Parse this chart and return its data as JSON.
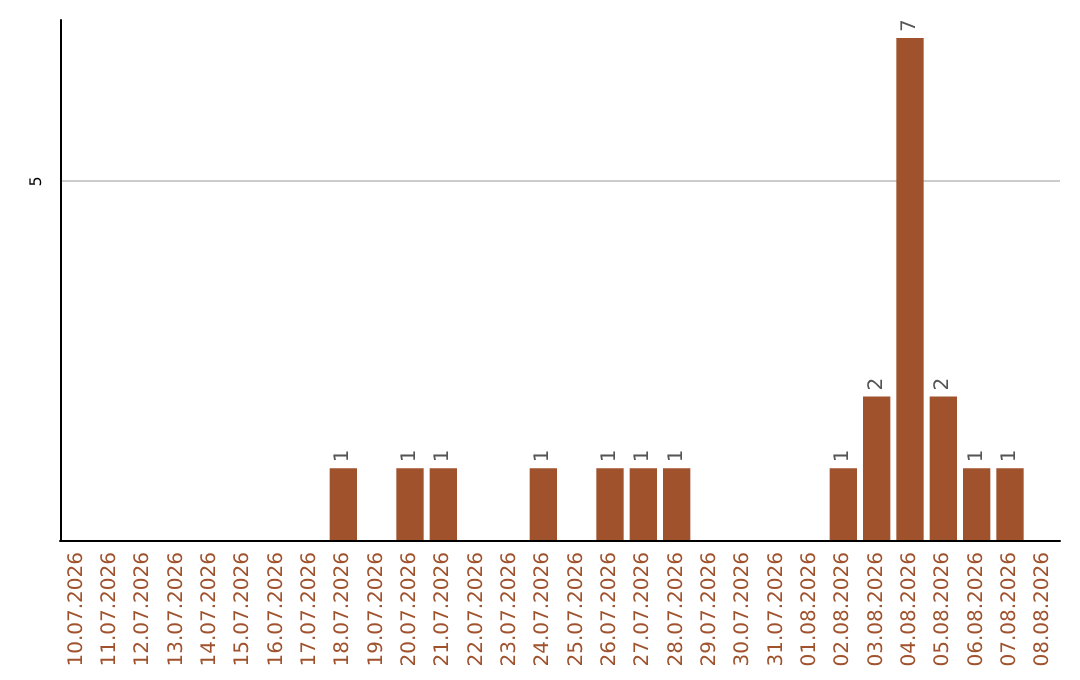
{
  "chart_data": {
    "type": "bar",
    "categories": [
      "10.07.2026",
      "11.07.2026",
      "12.07.2026",
      "13.07.2026",
      "14.07.2026",
      "15.07.2026",
      "16.07.2026",
      "17.07.2026",
      "18.07.2026",
      "19.07.2026",
      "20.07.2026",
      "21.07.2026",
      "22.07.2026",
      "23.07.2026",
      "24.07.2026",
      "25.07.2026",
      "26.07.2026",
      "27.07.2026",
      "28.07.2026",
      "29.07.2026",
      "30.07.2026",
      "31.07.2026",
      "01.08.2026",
      "02.08.2026",
      "03.08.2026",
      "04.08.2026",
      "05.08.2026",
      "06.08.2026",
      "07.08.2026",
      "08.08.2026"
    ],
    "values": [
      0,
      0,
      0,
      0,
      0,
      0,
      0,
      0,
      1,
      0,
      1,
      1,
      0,
      0,
      1,
      0,
      1,
      1,
      1,
      0,
      0,
      0,
      0,
      1,
      2,
      7,
      2,
      1,
      1,
      0
    ],
    "value_labels": [
      null,
      null,
      null,
      null,
      null,
      null,
      null,
      null,
      "1",
      null,
      "1",
      "1",
      null,
      null,
      "1",
      null,
      "1",
      "1",
      "1",
      null,
      null,
      null,
      null,
      "1",
      "2",
      "7",
      "2",
      "1",
      "1",
      null
    ],
    "color": "#a0522d",
    "ylim": [
      0,
      7.25
    ],
    "yticks": [
      5
    ],
    "grid": "y"
  }
}
